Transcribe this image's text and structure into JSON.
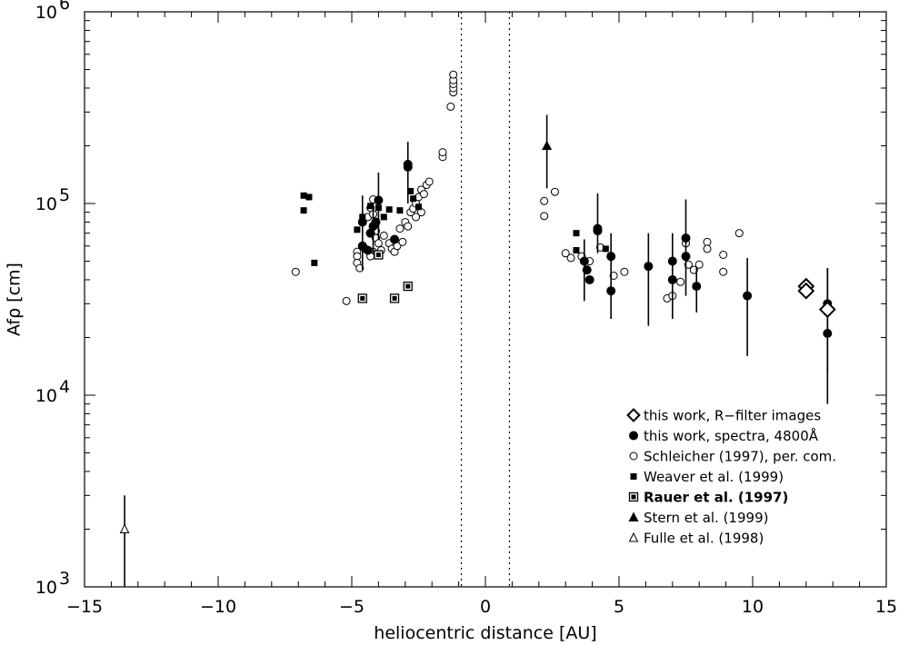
{
  "chart_data": {
    "type": "scatter",
    "xlabel": "heliocentric distance [AU]",
    "ylabel": "Afρ [cm]",
    "xlim": [
      -15,
      15
    ],
    "ylim": [
      1000,
      1000000
    ],
    "yscale": "log",
    "grid": false,
    "legend_position": "bottom-right",
    "x_ticks": [
      {
        "value": -15,
        "label": "−15"
      },
      {
        "value": -10,
        "label": "−10"
      },
      {
        "value": -5,
        "label": "−5"
      },
      {
        "value": 0,
        "label": "0"
      },
      {
        "value": 5,
        "label": "5"
      },
      {
        "value": 10,
        "label": "10"
      },
      {
        "value": 15,
        "label": "15"
      }
    ],
    "y_ticks": [
      {
        "value": 1000,
        "base": "10",
        "exp": "3"
      },
      {
        "value": 10000,
        "base": "10",
        "exp": "4"
      },
      {
        "value": 100000,
        "base": "10",
        "exp": "5"
      },
      {
        "value": 1000000,
        "base": "10",
        "exp": "6"
      }
    ],
    "vlines": [
      -0.9,
      0.9
    ],
    "series": [
      {
        "name": "this work, R−filter images",
        "marker": "diamond-open",
        "points": [
          [
            12.0,
            37000
          ],
          [
            12.0,
            35000
          ],
          [
            12.8,
            28000
          ]
        ],
        "errors": [
          null,
          null,
          [
            13000,
            46000
          ]
        ]
      },
      {
        "name": "this work, spectra, 4800Å",
        "marker": "circle-filled",
        "points": [
          [
            -4.6,
            60000
          ],
          [
            -4.6,
            80000
          ],
          [
            -4.2,
            76000
          ],
          [
            -4.0,
            104000
          ],
          [
            -4.1,
            80000
          ],
          [
            -3.4,
            65000
          ],
          [
            -2.9,
            160000
          ],
          [
            -2.9,
            155000
          ],
          [
            -4.3,
            70000
          ],
          [
            -4.4,
            57000
          ],
          [
            3.7,
            50000
          ],
          [
            3.8,
            45000
          ],
          [
            3.9,
            40000
          ],
          [
            4.2,
            74000
          ],
          [
            4.2,
            72000
          ],
          [
            4.7,
            53000
          ],
          [
            4.7,
            35000
          ],
          [
            6.1,
            47000
          ],
          [
            7.0,
            50000
          ],
          [
            7.0,
            40000
          ],
          [
            7.5,
            66000
          ],
          [
            7.5,
            53000
          ],
          [
            7.9,
            37000
          ],
          [
            9.8,
            33000
          ],
          [
            12.8,
            30000
          ],
          [
            12.8,
            21000
          ]
        ],
        "errors": [
          [
            45000,
            110000
          ],
          null,
          [
            55000,
            100000
          ],
          [
            65000,
            145000
          ],
          null,
          null,
          [
            100000,
            210000
          ],
          null,
          null,
          null,
          [
            31000,
            65000
          ],
          null,
          null,
          [
            55000,
            113000
          ],
          null,
          [
            25000,
            70000
          ],
          null,
          [
            23000,
            70000
          ],
          [
            25000,
            70000
          ],
          null,
          [
            33000,
            105000
          ],
          null,
          [
            27000,
            46000
          ],
          [
            16000,
            52000
          ],
          [
            9000,
            46000
          ],
          null
        ]
      },
      {
        "name": "Schleicher (1997), per. com.",
        "marker": "circle-open",
        "points": [
          [
            -7.1,
            44000
          ],
          [
            -5.2,
            31000
          ],
          [
            -4.8,
            56000
          ],
          [
            -4.8,
            53000
          ],
          [
            -4.8,
            49000
          ],
          [
            -4.7,
            46000
          ],
          [
            -4.5,
            58000
          ],
          [
            -4.4,
            85000
          ],
          [
            -4.3,
            95000
          ],
          [
            -4.2,
            105000
          ],
          [
            -4.2,
            88000
          ],
          [
            -4.1,
            72000
          ],
          [
            -4.1,
            66000
          ],
          [
            -4.0,
            62000
          ],
          [
            -4.2,
            56000
          ],
          [
            -4.3,
            53000
          ],
          [
            -3.9,
            57000
          ],
          [
            -3.8,
            68000
          ],
          [
            -3.6,
            62000
          ],
          [
            -3.5,
            58000
          ],
          [
            -3.4,
            56000
          ],
          [
            -3.3,
            60000
          ],
          [
            -3.1,
            63000
          ],
          [
            -3.2,
            74000
          ],
          [
            -3.0,
            80000
          ],
          [
            -2.9,
            76000
          ],
          [
            -2.8,
            90000
          ],
          [
            -2.7,
            94000
          ],
          [
            -2.6,
            100000
          ],
          [
            -2.5,
            108000
          ],
          [
            -2.4,
            118000
          ],
          [
            -2.3,
            112000
          ],
          [
            -2.2,
            125000
          ],
          [
            -2.1,
            130000
          ],
          [
            -2.4,
            90000
          ],
          [
            -2.6,
            85000
          ],
          [
            -1.6,
            175000
          ],
          [
            -1.6,
            185000
          ],
          [
            -1.3,
            320000
          ],
          [
            -1.2,
            380000
          ],
          [
            -1.2,
            400000
          ],
          [
            -1.2,
            420000
          ],
          [
            -1.2,
            440000
          ],
          [
            -1.2,
            470000
          ],
          [
            2.2,
            103000
          ],
          [
            2.2,
            86000
          ],
          [
            2.6,
            115000
          ],
          [
            3.0,
            55000
          ],
          [
            3.2,
            52000
          ],
          [
            3.6,
            53000
          ],
          [
            3.9,
            50000
          ],
          [
            4.3,
            59000
          ],
          [
            4.8,
            42000
          ],
          [
            5.2,
            44000
          ],
          [
            6.8,
            32000
          ],
          [
            7.0,
            33000
          ],
          [
            7.3,
            39000
          ],
          [
            7.5,
            62000
          ],
          [
            7.6,
            48000
          ],
          [
            7.8,
            45000
          ],
          [
            8.0,
            48000
          ],
          [
            8.3,
            63000
          ],
          [
            8.3,
            58000
          ],
          [
            8.9,
            54000
          ],
          [
            8.9,
            44000
          ],
          [
            9.5,
            70000
          ]
        ],
        "errors": null
      },
      {
        "name": "Weaver et al. (1999)",
        "marker": "square-filled",
        "points": [
          [
            -6.8,
            110000
          ],
          [
            -6.8,
            92000
          ],
          [
            -6.6,
            108000
          ],
          [
            -6.4,
            49000
          ],
          [
            -4.8,
            73000
          ],
          [
            -4.6,
            85000
          ],
          [
            -4.3,
            97000
          ],
          [
            -4.0,
            95000
          ],
          [
            -3.8,
            85000
          ],
          [
            -3.6,
            93000
          ],
          [
            -3.2,
            92000
          ],
          [
            -2.8,
            116000
          ],
          [
            -2.7,
            106000
          ],
          [
            -2.5,
            96000
          ],
          [
            3.4,
            57000
          ],
          [
            3.4,
            70000
          ],
          [
            4.5,
            58000
          ]
        ],
        "errors": null
      },
      {
        "name": "Rauer et al. (1997)",
        "marker": "square-dot",
        "points": [
          [
            -4.6,
            32000
          ],
          [
            -4.0,
            54000
          ],
          [
            -3.4,
            32000
          ],
          [
            -2.9,
            37000
          ]
        ],
        "errors": null
      },
      {
        "name": "Stern et al. (1999)",
        "marker": "triangle-filled",
        "points": [
          [
            2.3,
            200000
          ]
        ],
        "errors": [
          [
            120000,
            290000
          ]
        ]
      },
      {
        "name": "Fulle et al. (1998)",
        "marker": "triangle-open",
        "points": [
          [
            -13.5,
            2000
          ]
        ],
        "errors": [
          [
            1000,
            3000
          ]
        ]
      }
    ]
  }
}
